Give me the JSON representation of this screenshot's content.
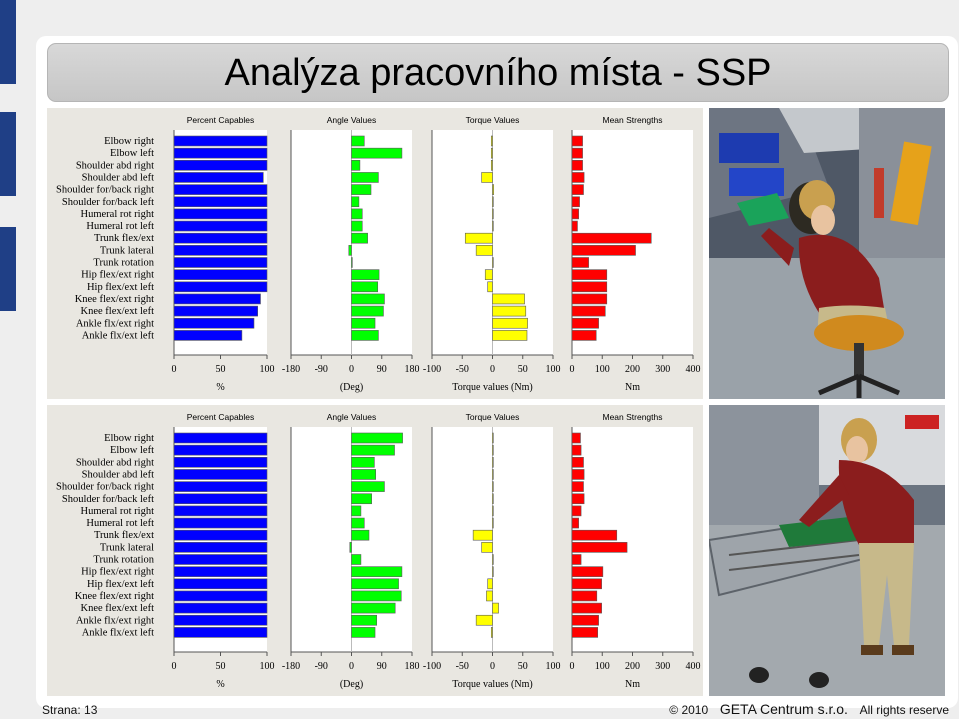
{
  "title": "Analýza pracovního místa - SSP",
  "footer": {
    "page": "Strana: 13",
    "year": "© 2010",
    "company": "GETA Centrum s.r.o.",
    "rights": "All rights reserve"
  },
  "colors": {
    "percent": "#0000ff",
    "angle": "#00ff00",
    "torque": "#ffff00",
    "strength": "#ff0000",
    "title_bg": "#cccccc",
    "sidebar": "#1f3f86"
  },
  "images": [
    {
      "name": "worker-seated-scene",
      "description_icon": "seated-worker-3d-model-icon"
    },
    {
      "name": "worker-standing-scene",
      "description_icon": "standing-worker-3d-model-icon"
    }
  ],
  "chart_data": [
    {
      "type": "bar",
      "orientation": "horizontal",
      "categories": [
        "Elbow right",
        "Elbow left",
        "Shoulder abd right",
        "Shoulder abd left",
        "Shoulder for/back right",
        "Shoulder for/back left",
        "Humeral rot right",
        "Humeral rot left",
        "Trunk flex/ext",
        "Trunk lateral",
        "Trunk rotation",
        "Hip flex/ext right",
        "Hip flex/ext left",
        "Knee flex/ext right",
        "Knee flex/ext left",
        "Ankle flx/ext right",
        "Ankle flx/ext left"
      ],
      "panels": [
        {
          "title": "Percent Capables",
          "xlabel": "%",
          "xlim": [
            0,
            100
          ],
          "ticks": [
            0,
            50,
            100
          ],
          "color_key": "percent",
          "values": [
            100,
            100,
            100,
            96,
            100,
            100,
            100,
            100,
            100,
            100,
            100,
            100,
            100,
            93,
            90,
            86,
            73
          ]
        },
        {
          "title": "Angle Values",
          "xlabel": "(Deg)",
          "xlim": [
            -180,
            180
          ],
          "ticks": [
            -180,
            -90,
            0,
            90,
            180
          ],
          "color_key": "angle",
          "values": [
            38,
            150,
            25,
            80,
            58,
            22,
            32,
            32,
            48,
            -8,
            0,
            82,
            78,
            98,
            95,
            70,
            80
          ]
        },
        {
          "title": "Torque Values",
          "xlabel": "Torque values (Nm)",
          "xlim": [
            -100,
            100
          ],
          "ticks": [
            -100,
            -50,
            0,
            50,
            100
          ],
          "color_key": "torque",
          "values": [
            -2,
            -2,
            -2,
            -18,
            2,
            0,
            0,
            0,
            -45,
            -27,
            0,
            -12,
            -8,
            53,
            55,
            58,
            57
          ]
        },
        {
          "title": "Mean Strengths",
          "xlabel": "Nm",
          "xlim": [
            0,
            400
          ],
          "ticks": [
            0,
            100,
            200,
            300,
            400
          ],
          "color_key": "strength",
          "values": [
            35,
            35,
            35,
            40,
            38,
            25,
            22,
            18,
            262,
            210,
            55,
            115,
            115,
            115,
            110,
            88,
            80
          ]
        }
      ]
    },
    {
      "type": "bar",
      "orientation": "horizontal",
      "categories": [
        "Elbow right",
        "Elbow left",
        "Shoulder abd right",
        "Shoulder abd left",
        "Shoulder for/back right",
        "Shoulder for/back left",
        "Humeral rot right",
        "Humeral rot left",
        "Trunk flex/ext",
        "Trunk lateral",
        "Trunk rotation",
        "Hip flex/ext right",
        "Hip flex/ext left",
        "Knee flex/ext right",
        "Knee flex/ext left",
        "Ankle flx/ext right",
        "Ankle flx/ext left"
      ],
      "panels": [
        {
          "title": "Percent Capables",
          "xlabel": "%",
          "xlim": [
            0,
            100
          ],
          "ticks": [
            0,
            50,
            100
          ],
          "color_key": "percent",
          "values": [
            100,
            100,
            100,
            100,
            100,
            100,
            100,
            100,
            100,
            100,
            100,
            100,
            100,
            100,
            100,
            100,
            100
          ]
        },
        {
          "title": "Angle Values",
          "xlabel": "(Deg)",
          "xlim": [
            -180,
            180
          ],
          "ticks": [
            -180,
            -90,
            0,
            90,
            180
          ],
          "color_key": "angle",
          "values": [
            152,
            128,
            68,
            72,
            98,
            60,
            28,
            38,
            52,
            -5,
            28,
            150,
            140,
            148,
            130,
            75,
            70
          ]
        },
        {
          "title": "Torque Values",
          "xlabel": "Torque values (Nm)",
          "xlim": [
            -100,
            100
          ],
          "ticks": [
            -100,
            -50,
            0,
            50,
            100
          ],
          "color_key": "torque",
          "values": [
            0,
            0,
            0,
            0,
            0,
            0,
            0,
            0,
            -32,
            -18,
            0,
            0,
            -8,
            -10,
            10,
            -27,
            -2
          ]
        },
        {
          "title": "Mean Strengths",
          "xlabel": "Nm",
          "xlim": [
            0,
            400
          ],
          "ticks": [
            0,
            100,
            200,
            300,
            400
          ],
          "color_key": "strength",
          "values": [
            28,
            30,
            38,
            40,
            38,
            40,
            30,
            22,
            148,
            182,
            30,
            102,
            98,
            82,
            98,
            88,
            85
          ]
        }
      ]
    }
  ]
}
